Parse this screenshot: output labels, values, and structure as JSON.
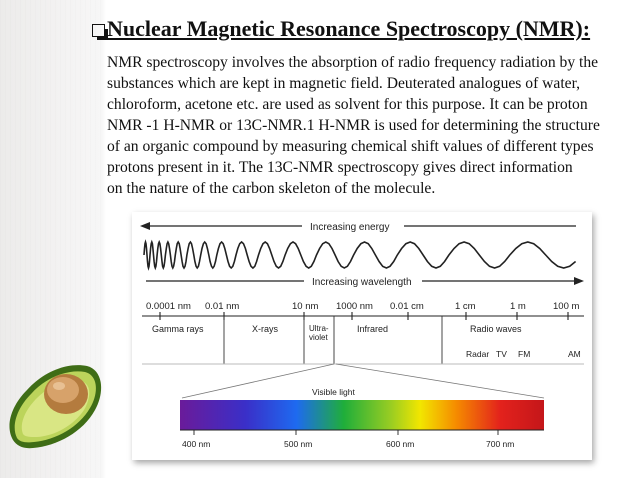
{
  "slide": {
    "title": "Nuclear Magnetic Resonance Spectroscopy (NMR):",
    "paragraph_lines": [
      "  NMR spectroscopy involves the absorption of  radio frequency radiation by the",
      "substances which are kept in magnetic field. Deuterated analogues of water,",
      "chloroform, acetone etc. are used as solvent for this purpose. It can be proton",
      "NMR -1 H-NMR or 13C-NMR.1 H-NMR is used for determining the structure",
      "of an organic compound by measuring  chemical shift values of different types",
      "protons present in it. The 13C-NMR spectroscopy gives direct information",
      "on the nature of the carbon skeleton of the molecule."
    ]
  },
  "diagram": {
    "energy_label": "Increasing energy",
    "wavelength_label": "Increasing wavelength",
    "scale_labels": [
      "0.0001 nm",
      "0.01 nm",
      "10 nm",
      "1000 nm",
      "0.01 cm",
      "1 cm",
      "1 m",
      "100 m"
    ],
    "regions": {
      "gamma": "Gamma rays",
      "xrays": "X-rays",
      "uv_line1": "Ultra-",
      "uv_line2": "violet",
      "infrared": "Infrared",
      "radio": "Radio waves"
    },
    "radio_bands": [
      "Radar",
      "TV",
      "FM",
      "AM"
    ],
    "visible_label": "Visible light",
    "visible_ticks": [
      "400 nm",
      "500 nm",
      "600 nm",
      "700 nm"
    ],
    "colors": {
      "violet": "#6a1b9a",
      "blue": "#1e3cf0",
      "green": "#1fae3a",
      "yellow": "#f2e600",
      "orange": "#f58a00",
      "red": "#e3221c",
      "avocado_skin": "#4f7d1e",
      "avocado_flesh": "#cfe07a",
      "avocado_seed": "#c0894a"
    }
  }
}
